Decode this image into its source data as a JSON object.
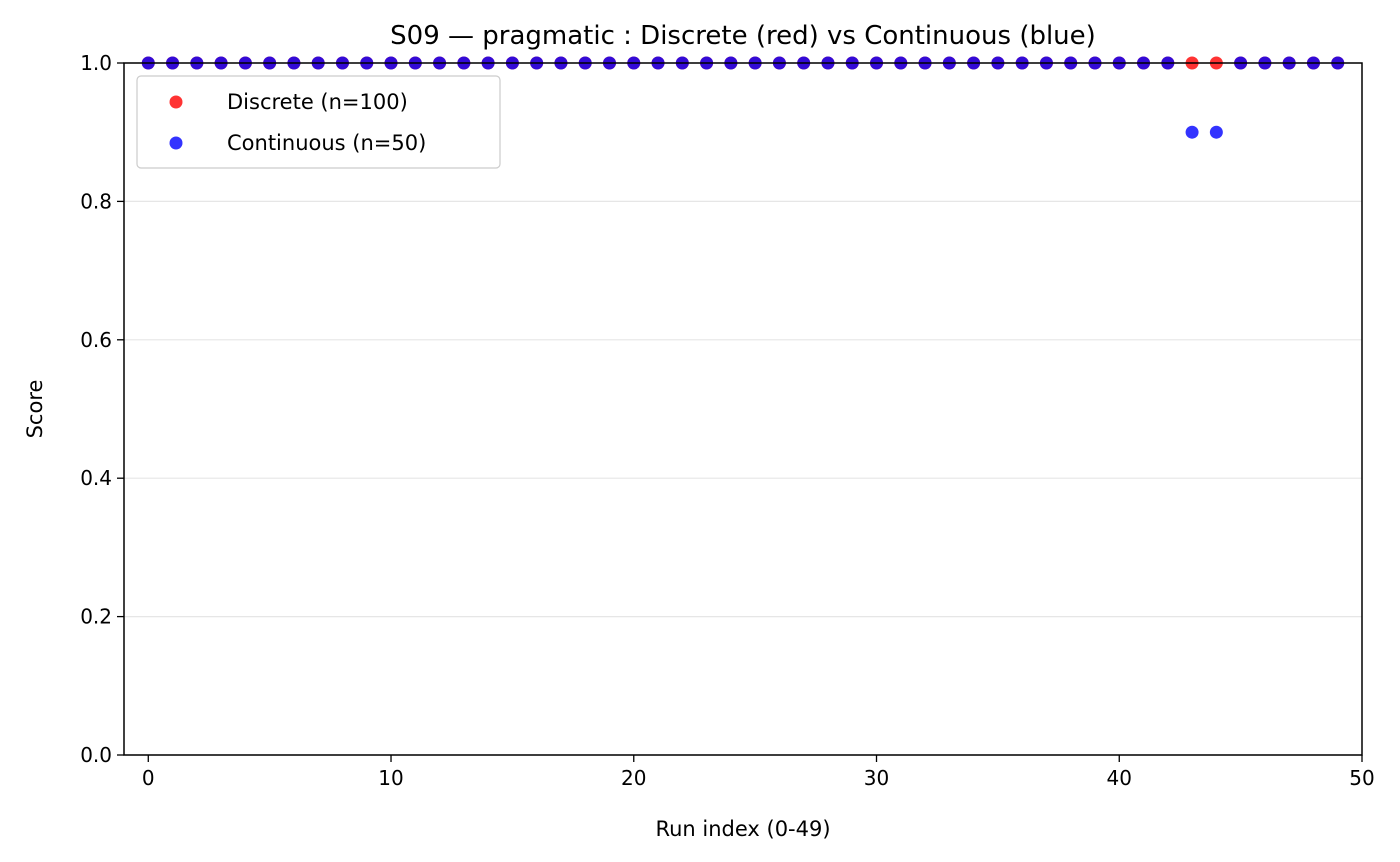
{
  "chart_data": {
    "type": "scatter",
    "title": "S09 — pragmatic : Discrete (red) vs Continuous (blue)",
    "xlabel": "Run index (0-49)",
    "ylabel": "Score",
    "xlim": [
      -1,
      50
    ],
    "ylim": [
      0,
      1
    ],
    "xticks": [
      0,
      10,
      20,
      30,
      40,
      50
    ],
    "yticks": [
      0.0,
      0.2,
      0.4,
      0.6,
      0.8,
      1.0
    ],
    "ytick_labels": [
      "0.0",
      "0.2",
      "0.4",
      "0.6",
      "0.8",
      "1.0"
    ],
    "grid": "y-major",
    "legend_position": "upper-left",
    "series": [
      {
        "name": "Discrete (n=100)",
        "color": "#ff0000",
        "x": [
          0,
          1,
          2,
          3,
          4,
          5,
          6,
          7,
          8,
          9,
          10,
          11,
          12,
          13,
          14,
          15,
          16,
          17,
          18,
          19,
          20,
          21,
          22,
          23,
          24,
          25,
          26,
          27,
          28,
          29,
          30,
          31,
          32,
          33,
          34,
          35,
          36,
          37,
          38,
          39,
          40,
          41,
          42,
          43,
          44,
          45,
          46,
          47,
          48,
          49
        ],
        "y": [
          1,
          1,
          1,
          1,
          1,
          1,
          1,
          1,
          1,
          1,
          1,
          1,
          1,
          1,
          1,
          1,
          1,
          1,
          1,
          1,
          1,
          1,
          1,
          1,
          1,
          1,
          1,
          1,
          1,
          1,
          1,
          1,
          1,
          1,
          1,
          1,
          1,
          1,
          1,
          1,
          1,
          1,
          1,
          1,
          1,
          1,
          1,
          1,
          1,
          1
        ]
      },
      {
        "name": "Continuous (n=50)",
        "color": "#0000ff",
        "x": [
          0,
          1,
          2,
          3,
          4,
          5,
          6,
          7,
          8,
          9,
          10,
          11,
          12,
          13,
          14,
          15,
          16,
          17,
          18,
          19,
          20,
          21,
          22,
          23,
          24,
          25,
          26,
          27,
          28,
          29,
          30,
          31,
          32,
          33,
          34,
          35,
          36,
          37,
          38,
          39,
          40,
          41,
          42,
          43,
          44,
          45,
          46,
          47,
          48,
          49
        ],
        "y": [
          1,
          1,
          1,
          1,
          1,
          1,
          1,
          1,
          1,
          1,
          1,
          1,
          1,
          1,
          1,
          1,
          1,
          1,
          1,
          1,
          1,
          1,
          1,
          1,
          1,
          1,
          1,
          1,
          1,
          1,
          1,
          1,
          1,
          1,
          1,
          1,
          1,
          1,
          1,
          1,
          1,
          1,
          1,
          0.9,
          0.9,
          1,
          1,
          1,
          1,
          1
        ]
      }
    ]
  }
}
